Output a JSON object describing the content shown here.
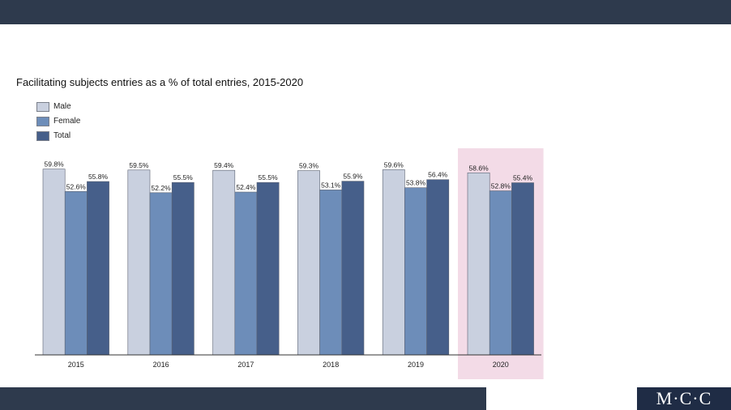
{
  "chart_data": {
    "type": "bar",
    "title": "Facilitating subjects entries as a % of total entries, 2015-2020",
    "categories": [
      "2015",
      "2016",
      "2017",
      "2018",
      "2019",
      "2020"
    ],
    "series": [
      {
        "name": "Male",
        "values": [
          59.8,
          59.5,
          59.4,
          59.3,
          59.6,
          58.6
        ],
        "color": "#c9d0df"
      },
      {
        "name": "Female",
        "values": [
          52.6,
          52.2,
          52.4,
          53.1,
          53.8,
          52.8
        ],
        "color": "#6d8db9"
      },
      {
        "name": "Total",
        "values": [
          55.8,
          55.5,
          55.5,
          55.9,
          56.4,
          55.4
        ],
        "color": "#465f8a"
      }
    ],
    "value_suffix": "%",
    "highlighted_category": "2020",
    "highlight_color": "#f3dbe7",
    "ylim": [
      0,
      64
    ],
    "grid": false,
    "legend_position": "top-left"
  },
  "logo": {
    "text": "M·C·C"
  },
  "colors": {
    "header_bar": "#2e3a4d",
    "footer_bar": "#2e3a4d"
  }
}
